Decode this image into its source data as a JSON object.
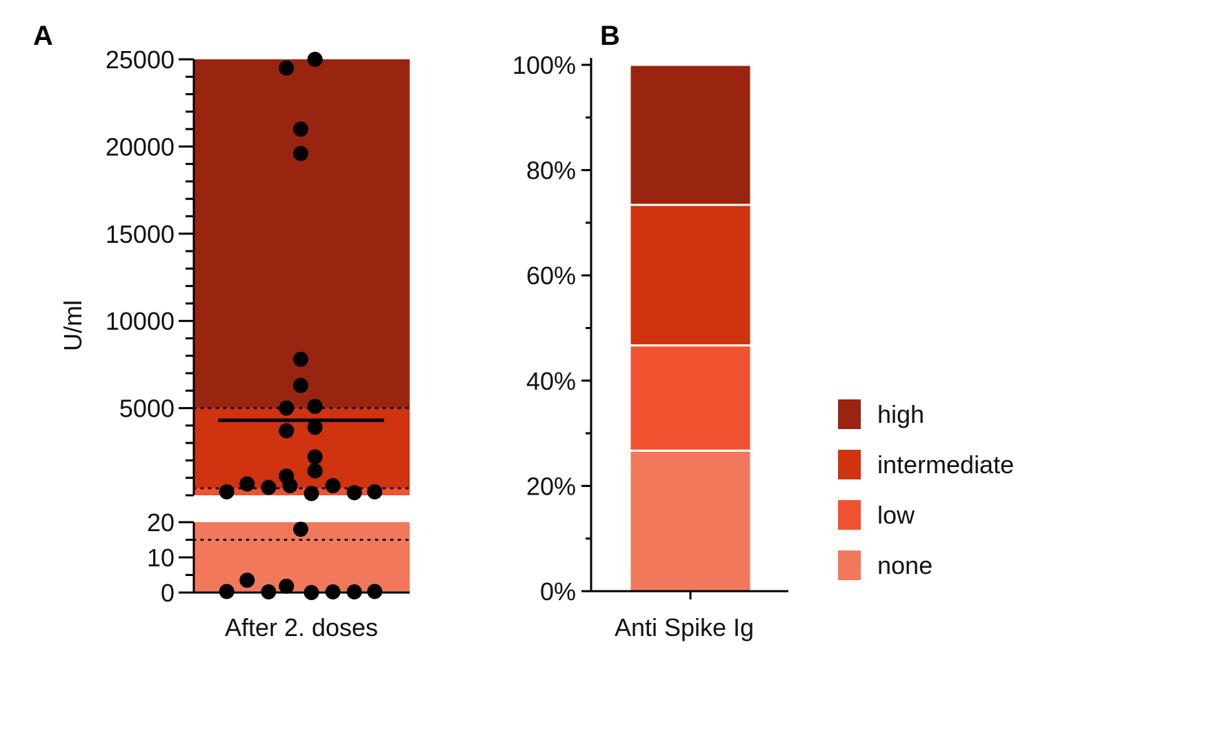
{
  "panel_labels": {
    "a": "A",
    "b": "B"
  },
  "colors": {
    "high": "#992510",
    "intermediate": "#cf330f",
    "low": "#f05230",
    "none": "#f2785c",
    "point": "#000000",
    "axis": "#000000"
  },
  "chart_data": [
    {
      "type": "scatter",
      "panel": "A",
      "ylabel": "U/ml",
      "category": "After 2. doses",
      "upper_axis": {
        "ylim": [
          0,
          25000
        ],
        "major_ticks": [
          5000,
          10000,
          15000,
          20000,
          25000
        ],
        "tick_labels": [
          "5000",
          "10000",
          "15000",
          "20000",
          "25000"
        ],
        "minor_step": 1000
      },
      "lower_axis": {
        "ylim": [
          0,
          20
        ],
        "major_ticks": [
          0,
          10,
          20
        ],
        "tick_labels": [
          "0",
          "10",
          "20"
        ],
        "minor_step": 5
      },
      "bands": [
        {
          "level": "high",
          "from": 5000,
          "to": 25000
        },
        {
          "level": "intermediate",
          "from": 400,
          "to": 5000
        },
        {
          "level": "low",
          "from": 15,
          "to": 400
        },
        {
          "level": "none",
          "from": 0,
          "to": 15
        }
      ],
      "thresholds": [
        5000,
        400,
        15
      ],
      "median": 4300,
      "points": [
        {
          "x": -0.28,
          "y": 24500
        },
        {
          "x": 0.28,
          "y": 25000
        },
        {
          "x": 0,
          "y": 21000
        },
        {
          "x": 0,
          "y": 19600
        },
        {
          "x": 0,
          "y": 7800
        },
        {
          "x": 0,
          "y": 6300
        },
        {
          "x": -0.28,
          "y": 5000
        },
        {
          "x": 0.28,
          "y": 5100
        },
        {
          "x": -0.28,
          "y": 3700
        },
        {
          "x": 0.28,
          "y": 3900
        },
        {
          "x": 0.28,
          "y": 2200
        },
        {
          "x": 0.28,
          "y": 1400
        },
        {
          "x": -0.28,
          "y": 1100
        },
        {
          "x": -1.45,
          "y": 200
        },
        {
          "x": -1.05,
          "y": 650
        },
        {
          "x": -0.63,
          "y": 450
        },
        {
          "x": -0.21,
          "y": 550
        },
        {
          "x": 0.21,
          "y": 100
        },
        {
          "x": 0.63,
          "y": 550
        },
        {
          "x": 1.05,
          "y": 150
        },
        {
          "x": 1.45,
          "y": 200
        },
        {
          "x": 0,
          "y": 18
        },
        {
          "x": -1.05,
          "y": 3.5
        },
        {
          "x": -0.28,
          "y": 1.8
        },
        {
          "x": -1.45,
          "y": 0.3
        },
        {
          "x": -0.63,
          "y": 0.2
        },
        {
          "x": 0.21,
          "y": 0
        },
        {
          "x": 0.63,
          "y": 0.2
        },
        {
          "x": 1.05,
          "y": 0.2
        },
        {
          "x": 1.45,
          "y": 0.3
        }
      ]
    },
    {
      "type": "bar",
      "stacked": true,
      "panel": "B",
      "categories": [
        "Anti Spike Ig"
      ],
      "ylim": [
        0,
        100
      ],
      "y_ticks": [
        0,
        20,
        40,
        60,
        80,
        100
      ],
      "y_tick_labels": [
        "0%",
        "20%",
        "40%",
        "60%",
        "80%",
        "100%"
      ],
      "series": [
        {
          "name": "none",
          "values": [
            26.7
          ]
        },
        {
          "name": "low",
          "values": [
            20
          ]
        },
        {
          "name": "intermediate",
          "values": [
            26.7
          ]
        },
        {
          "name": "high",
          "values": [
            26.6
          ]
        }
      ],
      "legend": {
        "position": "right",
        "entries": [
          "high",
          "intermediate",
          "low",
          "none"
        ]
      }
    }
  ]
}
